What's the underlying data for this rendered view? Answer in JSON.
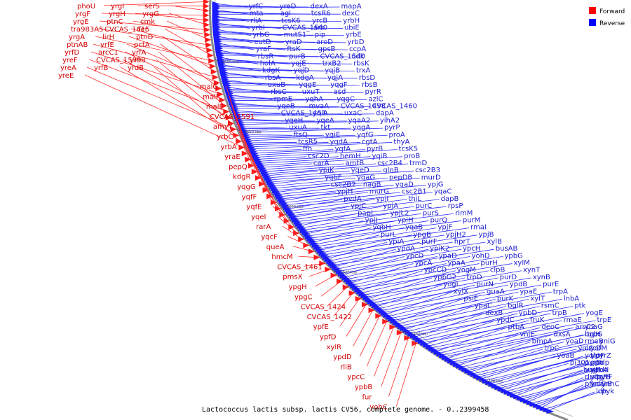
{
  "caption": "Lactococcus lactis subsp. lactis CV56, complete genome. - 0..2399458",
  "legend": [
    {
      "label": "Forward",
      "color": "#ff0000"
    },
    {
      "label": "Reverse",
      "color": "#0000ff"
    }
  ],
  "ticks": [
    "1600 kbp",
    "1650 kbp",
    "1550 kbp",
    "1500 kbp",
    "1450 kbp",
    "1400 kbp"
  ],
  "forward_genes": [
    "phoU",
    "yrgI",
    "serS",
    "yrgF",
    "yrgH",
    "yrgG",
    "yrgE",
    "ptnC",
    "cmk",
    "tra983A5",
    "CVCAS_1615",
    "fer",
    "yrgA",
    "lirH",
    "ptnD",
    "ptnAB",
    "yrfE",
    "pctA",
    "yrfD",
    "arcC1",
    "yrfA",
    "yreF",
    "CVCAS_1599",
    "yreB",
    "yreA",
    "yrfB",
    "yrdB",
    "yreE",
    "malG",
    "malF",
    "malE",
    "CVCAS_1591",
    "amyY",
    "yrbC",
    "yrbA",
    "yraE",
    "pepQ",
    "kdgR",
    "yqgG",
    "yqfF",
    "yqfE",
    "yqeI",
    "rarA",
    "yqcF",
    "queA",
    "hmcM",
    "CVCAS_1461",
    "pmsX",
    "ypgH",
    "ypgC",
    "CVCAS_1424",
    "CVCAS_1422",
    "ypfE",
    "ypfD",
    "xylR",
    "ypdD",
    "rliB",
    "ypcC",
    "ypbB",
    "fur",
    "yohC"
  ],
  "reverse_genes": [
    "yrfC",
    "yreD",
    "dexA",
    "mapA",
    "mta",
    "agl",
    "tcsR6",
    "dexC",
    "rliA",
    "tcsK6",
    "yrcB",
    "yrbH",
    "yrbI",
    "CVCAS_1560",
    "arb",
    "ubiE",
    "yrbG",
    "mutS1",
    "pip",
    "yrbE",
    "eutD",
    "yraD",
    "aroD",
    "yrbD",
    "yraF",
    "ftsK",
    "gpsB",
    "ccpA",
    "rbsR",
    "purB",
    "CVCAS_1540",
    "udk",
    "holA",
    "yqjE",
    "trxB2",
    "rbsK",
    "kdgK",
    "yqjD",
    "yqjB",
    "trxA",
    "rbsA",
    "kdgA",
    "yqjA",
    "rbsD",
    "uxuB",
    "yqgE",
    "yqgF",
    "rbsB",
    "rbsC",
    "uxuT",
    "asd",
    "pyrR",
    "rpmE",
    "yqhA",
    "yqgC",
    "azlC",
    "yqeB",
    "mvaA",
    "CVCAS_1498",
    "CVCAS_1460",
    "CVCAS_1451",
    "yqiA",
    "uxaC",
    "dapA",
    "yqeH",
    "yqeA",
    "yqaA2",
    "yihA2",
    "uxuA",
    "tkt",
    "yqgA",
    "pyrP",
    "ftsQ",
    "yqiE",
    "yqfG",
    "proA",
    "tcsR5",
    "yqdA",
    "cgtA",
    "thyA",
    "ffh",
    "yqfA",
    "pyrB",
    "tcsK5",
    "csc2D",
    "hemH",
    "yqiB",
    "proB",
    "carA",
    "amtB",
    "csc2B4",
    "trmD",
    "ypiK",
    "yqeD",
    "glnB",
    "csc2B3",
    "yqbF",
    "yqaG",
    "pepDB",
    "murD",
    "csc2B2",
    "nagB",
    "yqaD",
    "ypjG",
    "ypjH",
    "murG",
    "csc2B1",
    "yqaC",
    "pvdA",
    "ypjI",
    "thiL",
    "dapB",
    "ypjC",
    "ypjA",
    "purC",
    "rpsP",
    "papL",
    "ypjL2",
    "purS",
    "rimM",
    "ypjJ",
    "ypiH",
    "purQ",
    "purM",
    "yqbH",
    "yqaB",
    "ypjF",
    "rmaI",
    "purL",
    "ypgB",
    "ypjH2",
    "ypjB",
    "ypiA",
    "purF",
    "hprT",
    "xylB",
    "ypdA",
    "ypiK2",
    "ypcH",
    "busAB",
    "ypcD",
    "ypaD",
    "yohD",
    "ypbG",
    "ypcA",
    "ypaA",
    "purH",
    "xylM",
    "ypcCD",
    "yogM",
    "clpB",
    "xynT",
    "ypbG2",
    "trpD",
    "purD",
    "xynB",
    "yogL",
    "purN",
    "ypdB",
    "purE",
    "xylX",
    "guaA",
    "ypaE",
    "trpA",
    "psiE",
    "purK",
    "xylT",
    "lnbA",
    "ypaC",
    "bglR",
    "rsmC",
    "ptk",
    "dexB",
    "ypbD",
    "trpB",
    "yogE",
    "ypdC",
    "fruK",
    "rmaE",
    "trpE",
    "ptbA",
    "deoC",
    "arsC2",
    "yoaG",
    "vnjE",
    "dxsA",
    "trpG",
    "bglH",
    "bmpA",
    "yoaD",
    "yniG",
    "rmeB",
    "trpC",
    "yoiC",
    "yofM",
    "czcD",
    "yoaB",
    "ypyrZ",
    "trpF",
    "yohH",
    "pi301",
    "pdp",
    "gpo",
    "pyrD",
    "busR",
    "cdd",
    "yobA",
    "vnjJ",
    "pyrF",
    "rgrB",
    "yoaF",
    "rluC",
    "ynhC",
    "carB",
    "ynlC",
    "pfk",
    "pyk",
    "ldh"
  ]
}
